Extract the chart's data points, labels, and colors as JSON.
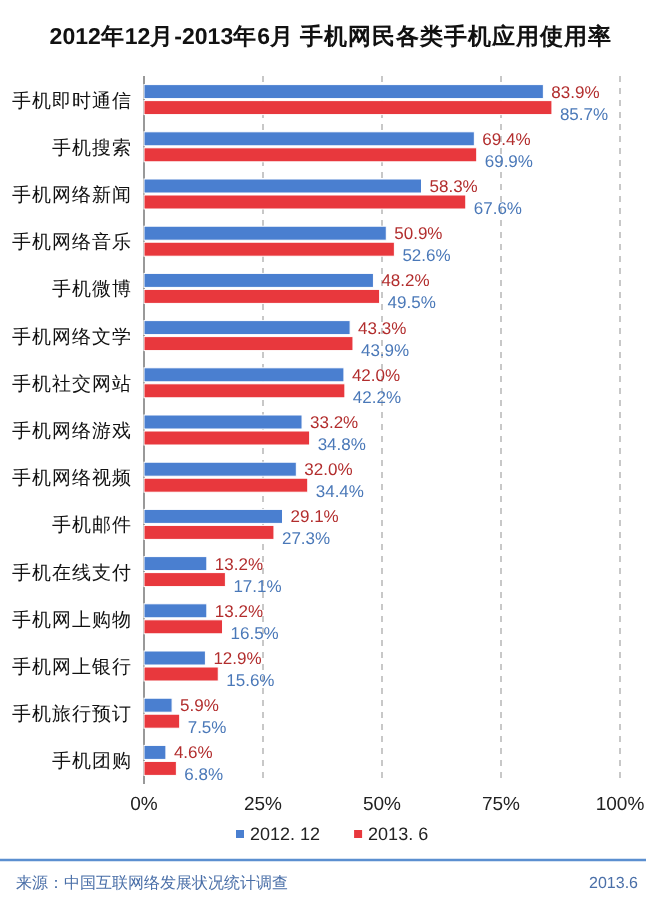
{
  "chart_data": {
    "type": "bar",
    "orientation": "horizontal",
    "title": "2012年12月-2013年6月 手机网民各类手机应用使用率",
    "categories": [
      "手机即时通信",
      "手机搜索",
      "手机网络新闻",
      "手机网络音乐",
      "手机微博",
      "手机网络文学",
      "手机社交网站",
      "手机网络游戏",
      "手机网络视频",
      "手机邮件",
      "手机在线支付",
      "手机网上购物",
      "手机网上银行",
      "手机旅行预订",
      "手机团购"
    ],
    "series": [
      {
        "name": "2012. 12",
        "color": "#4a7fd0",
        "values": [
          83.9,
          69.4,
          58.3,
          50.9,
          48.2,
          43.3,
          42.0,
          33.2,
          32.0,
          29.1,
          13.2,
          13.2,
          12.9,
          5.9,
          4.6
        ],
        "value_labels": [
          "83.9%",
          "69.4%",
          "58.3%",
          "50.9%",
          "48.2%",
          "43.3%",
          "42.0%",
          "33.2%",
          "32.0%",
          "29.1%",
          "13.2%",
          "13.2%",
          "12.9%",
          "5.9%",
          "4.6%"
        ]
      },
      {
        "name": "2013. 6",
        "color": "#e8383d",
        "values": [
          85.7,
          69.9,
          67.6,
          52.6,
          49.5,
          43.9,
          42.2,
          34.8,
          34.4,
          27.3,
          17.1,
          16.5,
          15.6,
          7.5,
          6.8
        ],
        "value_labels": [
          "85.7%",
          "69.9%",
          "67.6%",
          "52.6%",
          "49.5%",
          "43.9%",
          "42.2%",
          "34.8%",
          "34.4%",
          "27.3%",
          "17.1%",
          "16.5%",
          "15.6%",
          "7.5%",
          "6.8%"
        ]
      }
    ],
    "xlim": [
      0,
      100
    ],
    "xticks": [
      {
        "value": 0,
        "label": "0%"
      },
      {
        "value": 25,
        "label": "25%"
      },
      {
        "value": 50,
        "label": "50%"
      },
      {
        "value": 75,
        "label": "75%"
      },
      {
        "value": 100,
        "label": "100%"
      }
    ],
    "grid": "x",
    "legend": "bottom",
    "annotations": [
      "来源：中国互联网络发展状况统计调查",
      "2013.6"
    ]
  }
}
